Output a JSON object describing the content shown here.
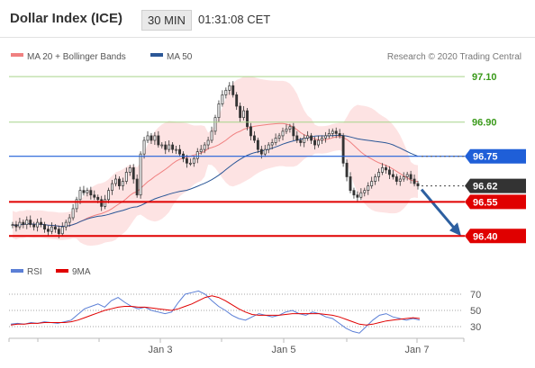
{
  "header": {
    "title": "Dollar Index (ICE)",
    "interval": "30 MIN",
    "time": "01:31:08 CET"
  },
  "legend": {
    "items": [
      {
        "label": "MA 20 + Bollinger Bands",
        "color": "#f08080"
      },
      {
        "label": "MA 50",
        "color": "#2b5797"
      }
    ],
    "copyright": "Research © 2020 Trading Central"
  },
  "rsi_legend": {
    "items": [
      {
        "label": "RSI",
        "color": "#5b7fd6"
      },
      {
        "label": "9MA",
        "color": "#e00000"
      }
    ]
  },
  "colors": {
    "green_level": "#3a9a1a",
    "blue_level": "#1f5fd8",
    "red_level": "#e00000",
    "current": "#333333",
    "candle": "#333333",
    "bollinger_fill": "#fde0e0",
    "ma20": "#f08080",
    "ma50": "#2b5797",
    "arrow": "#2c5fa0"
  },
  "chart_data": [
    {
      "type": "candlestick",
      "ylim": [
        96.33,
        97.14
      ],
      "x_ticks": [
        "Jan 3",
        "Jan 5",
        "Jan 7"
      ],
      "levels": [
        {
          "value": 97.1,
          "label": "97.10",
          "style": "green-line-green-text"
        },
        {
          "value": 96.9,
          "label": "96.90",
          "style": "green-line-green-text"
        },
        {
          "value": 96.75,
          "label": "96.75",
          "style": "blue-line-blue-tag"
        },
        {
          "value": 96.62,
          "label": "96.62",
          "style": "current-dark-tag"
        },
        {
          "value": 96.55,
          "label": "96.55",
          "style": "red-line-red-tag"
        },
        {
          "value": 96.4,
          "label": "96.40",
          "style": "red-line-red-tag"
        }
      ],
      "close": [
        96.45,
        96.44,
        96.46,
        96.45,
        96.47,
        96.45,
        96.44,
        96.46,
        96.45,
        96.43,
        96.42,
        96.44,
        96.43,
        96.41,
        96.44,
        96.46,
        96.48,
        96.52,
        96.56,
        96.6,
        96.59,
        96.6,
        96.58,
        96.57,
        96.56,
        96.53,
        96.56,
        96.6,
        96.63,
        96.65,
        96.62,
        96.64,
        96.68,
        96.7,
        96.65,
        96.58,
        96.76,
        96.82,
        96.84,
        96.82,
        96.84,
        96.8,
        96.8,
        96.78,
        96.8,
        96.78,
        96.78,
        96.76,
        96.74,
        96.72,
        96.72,
        96.74,
        96.77,
        96.78,
        96.8,
        96.82,
        96.86,
        96.92,
        96.98,
        97.02,
        97.04,
        97.06,
        97.02,
        96.97,
        96.92,
        96.95,
        96.88,
        96.84,
        96.82,
        96.78,
        96.76,
        96.78,
        96.8,
        96.81,
        96.83,
        96.84,
        96.86,
        96.87,
        96.88,
        96.84,
        96.82,
        96.81,
        96.83,
        96.84,
        96.82,
        96.8,
        96.82,
        96.83,
        96.84,
        96.85,
        96.86,
        96.85,
        96.84,
        96.72,
        96.66,
        96.6,
        96.58,
        96.57,
        96.59,
        96.6,
        96.62,
        96.64,
        96.66,
        96.68,
        96.7,
        96.69,
        96.67,
        96.66,
        96.64,
        96.65,
        96.66,
        96.67,
        96.65,
        96.63,
        96.62
      ],
      "ma20_description": "pink moving average inside Bollinger band envelope",
      "ma50_description": "dark blue 50-period moving average"
    },
    {
      "type": "line",
      "title": "RSI",
      "y_ticks": [
        70,
        50,
        30
      ],
      "ylim": [
        20,
        80
      ],
      "series": [
        {
          "name": "RSI",
          "values": [
            33,
            34,
            33,
            35,
            34,
            36,
            35,
            34,
            36,
            38,
            45,
            52,
            55,
            58,
            54,
            62,
            66,
            60,
            55,
            52,
            54,
            50,
            48,
            46,
            48,
            60,
            70,
            72,
            74,
            70,
            62,
            55,
            50,
            44,
            40,
            38,
            42,
            46,
            44,
            42,
            44,
            48,
            50,
            46,
            44,
            48,
            46,
            42,
            40,
            34,
            28,
            24,
            22,
            30,
            38,
            44,
            46,
            42,
            40,
            38,
            40,
            38
          ]
        },
        {
          "name": "9MA",
          "values": [
            32,
            33,
            33,
            34,
            34,
            35,
            35,
            35,
            35,
            36,
            38,
            41,
            44,
            47,
            50,
            52,
            54,
            55,
            55,
            54,
            54,
            53,
            52,
            51,
            50,
            52,
            55,
            58,
            62,
            66,
            68,
            66,
            62,
            57,
            52,
            48,
            45,
            44,
            44,
            44,
            44,
            45,
            46,
            46,
            46,
            46,
            46,
            45,
            44,
            42,
            39,
            36,
            33,
            32,
            33,
            35,
            37,
            38,
            39,
            40,
            41,
            40
          ]
        }
      ]
    }
  ]
}
